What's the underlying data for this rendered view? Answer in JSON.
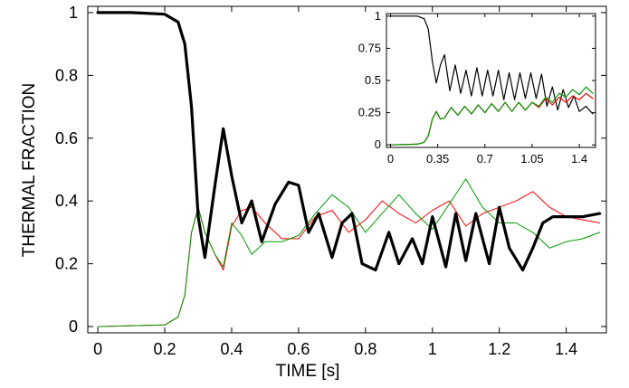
{
  "chart_data": [
    {
      "type": "line",
      "title": "",
      "xlabel": "TIME [s]",
      "ylabel": "THERMAL FRACTION",
      "xlim": [
        -0.03,
        1.52
      ],
      "ylim": [
        -0.02,
        1.02
      ],
      "xticks": [
        "0",
        "0.2",
        "0.4",
        "0.6",
        "0.8",
        "1",
        "1.2",
        "1.4"
      ],
      "xtick_values": [
        0,
        0.2,
        0.4,
        0.6,
        0.8,
        1.0,
        1.2,
        1.4
      ],
      "yticks": [
        "0",
        "0.2",
        "0.4",
        "0.6",
        "0.8",
        "1"
      ],
      "ytick_values": [
        0,
        0.2,
        0.4,
        0.6,
        0.8,
        1.0
      ],
      "grid": false,
      "legend": "none",
      "series": [
        {
          "color": "#000000",
          "style": "thick",
          "x": [
            0,
            0.1,
            0.2,
            0.24,
            0.26,
            0.28,
            0.3,
            0.32,
            0.35,
            0.375,
            0.4,
            0.43,
            0.46,
            0.49,
            0.53,
            0.57,
            0.6,
            0.63,
            0.66,
            0.7,
            0.73,
            0.76,
            0.79,
            0.83,
            0.87,
            0.9,
            0.94,
            0.97,
            1.0,
            1.04,
            1.07,
            1.1,
            1.13,
            1.17,
            1.2,
            1.23,
            1.27,
            1.3,
            1.33,
            1.36,
            1.4,
            1.45,
            1.5
          ],
          "y": [
            1.0,
            1.0,
            0.995,
            0.97,
            0.9,
            0.7,
            0.35,
            0.22,
            0.45,
            0.63,
            0.48,
            0.33,
            0.4,
            0.27,
            0.39,
            0.46,
            0.45,
            0.3,
            0.36,
            0.22,
            0.33,
            0.36,
            0.2,
            0.18,
            0.3,
            0.2,
            0.28,
            0.2,
            0.35,
            0.19,
            0.36,
            0.21,
            0.36,
            0.2,
            0.38,
            0.25,
            0.18,
            0.25,
            0.33,
            0.35,
            0.35,
            0.35,
            0.36
          ]
        },
        {
          "color": "#ff0000",
          "style": "thin",
          "x": [
            0,
            0.2,
            0.24,
            0.26,
            0.28,
            0.3,
            0.32,
            0.35,
            0.375,
            0.4,
            0.43,
            0.46,
            0.5,
            0.55,
            0.6,
            0.65,
            0.7,
            0.75,
            0.8,
            0.85,
            0.9,
            0.95,
            1.0,
            1.05,
            1.1,
            1.15,
            1.2,
            1.25,
            1.3,
            1.35,
            1.4,
            1.45,
            1.5
          ],
          "y": [
            0,
            0.005,
            0.03,
            0.1,
            0.3,
            0.38,
            0.3,
            0.23,
            0.18,
            0.32,
            0.37,
            0.38,
            0.33,
            0.28,
            0.28,
            0.35,
            0.37,
            0.3,
            0.34,
            0.4,
            0.36,
            0.33,
            0.37,
            0.4,
            0.32,
            0.36,
            0.38,
            0.4,
            0.43,
            0.38,
            0.35,
            0.34,
            0.33
          ]
        },
        {
          "color": "#009900",
          "style": "thin",
          "x": [
            0,
            0.2,
            0.24,
            0.26,
            0.28,
            0.3,
            0.32,
            0.35,
            0.375,
            0.4,
            0.43,
            0.46,
            0.5,
            0.55,
            0.6,
            0.65,
            0.7,
            0.75,
            0.8,
            0.85,
            0.9,
            0.95,
            1.0,
            1.05,
            1.1,
            1.15,
            1.2,
            1.25,
            1.3,
            1.35,
            1.4,
            1.45,
            1.5
          ],
          "y": [
            0,
            0.005,
            0.03,
            0.1,
            0.3,
            0.38,
            0.3,
            0.23,
            0.19,
            0.33,
            0.29,
            0.23,
            0.27,
            0.27,
            0.29,
            0.36,
            0.42,
            0.38,
            0.3,
            0.36,
            0.42,
            0.36,
            0.31,
            0.39,
            0.47,
            0.38,
            0.33,
            0.33,
            0.3,
            0.25,
            0.27,
            0.28,
            0.3
          ]
        }
      ]
    },
    {
      "type": "line",
      "title": "",
      "xlabel": "",
      "ylabel": "",
      "xlim": [
        -0.03,
        1.52
      ],
      "ylim": [
        -0.02,
        1.02
      ],
      "xticks": [
        "0",
        "0.35",
        "0.7",
        "1.05",
        "1.4"
      ],
      "xtick_values": [
        0,
        0.35,
        0.7,
        1.05,
        1.4
      ],
      "yticks": [
        "0",
        "0.25",
        "0.5",
        "0.75",
        "1"
      ],
      "ytick_values": [
        0,
        0.25,
        0.5,
        0.75,
        1.0
      ],
      "grid": false,
      "legend": "none",
      "series": [
        {
          "color": "#000000",
          "style": "thin",
          "x": [
            0,
            0.2,
            0.25,
            0.28,
            0.31,
            0.34,
            0.37,
            0.4,
            0.44,
            0.48,
            0.52,
            0.56,
            0.6,
            0.64,
            0.68,
            0.72,
            0.76,
            0.8,
            0.84,
            0.88,
            0.92,
            0.96,
            1.0,
            1.04,
            1.08,
            1.12,
            1.16,
            1.2,
            1.24,
            1.28,
            1.32,
            1.36,
            1.4,
            1.45,
            1.5
          ],
          "y": [
            1.0,
            1.0,
            0.98,
            0.9,
            0.65,
            0.48,
            0.62,
            0.7,
            0.42,
            0.62,
            0.4,
            0.58,
            0.38,
            0.6,
            0.38,
            0.58,
            0.38,
            0.58,
            0.35,
            0.56,
            0.35,
            0.56,
            0.36,
            0.56,
            0.36,
            0.55,
            0.3,
            0.45,
            0.27,
            0.43,
            0.29,
            0.38,
            0.26,
            0.3,
            0.24
          ]
        },
        {
          "color": "#ff0000",
          "style": "thin",
          "x": [
            0,
            0.2,
            0.25,
            0.28,
            0.31,
            0.34,
            0.37,
            0.4,
            0.45,
            0.5,
            0.55,
            0.6,
            0.65,
            0.7,
            0.75,
            0.8,
            0.85,
            0.9,
            0.95,
            1.0,
            1.05,
            1.1,
            1.15,
            1.2,
            1.25,
            1.3,
            1.35,
            1.4,
            1.45,
            1.5
          ],
          "y": [
            0,
            0.005,
            0.02,
            0.07,
            0.2,
            0.26,
            0.2,
            0.21,
            0.29,
            0.23,
            0.3,
            0.24,
            0.31,
            0.25,
            0.32,
            0.26,
            0.33,
            0.26,
            0.33,
            0.27,
            0.33,
            0.29,
            0.36,
            0.31,
            0.37,
            0.33,
            0.38,
            0.35,
            0.4,
            0.36
          ]
        },
        {
          "color": "#009900",
          "style": "thin",
          "x": [
            0,
            0.2,
            0.25,
            0.28,
            0.31,
            0.34,
            0.37,
            0.4,
            0.45,
            0.5,
            0.55,
            0.6,
            0.65,
            0.7,
            0.75,
            0.8,
            0.85,
            0.9,
            0.95,
            1.0,
            1.05,
            1.1,
            1.15,
            1.2,
            1.25,
            1.3,
            1.35,
            1.4,
            1.45,
            1.5
          ],
          "y": [
            0,
            0.005,
            0.02,
            0.07,
            0.2,
            0.26,
            0.2,
            0.21,
            0.29,
            0.23,
            0.3,
            0.24,
            0.31,
            0.25,
            0.32,
            0.26,
            0.33,
            0.26,
            0.33,
            0.27,
            0.33,
            0.3,
            0.37,
            0.33,
            0.4,
            0.37,
            0.43,
            0.39,
            0.45,
            0.4
          ]
        }
      ]
    }
  ]
}
